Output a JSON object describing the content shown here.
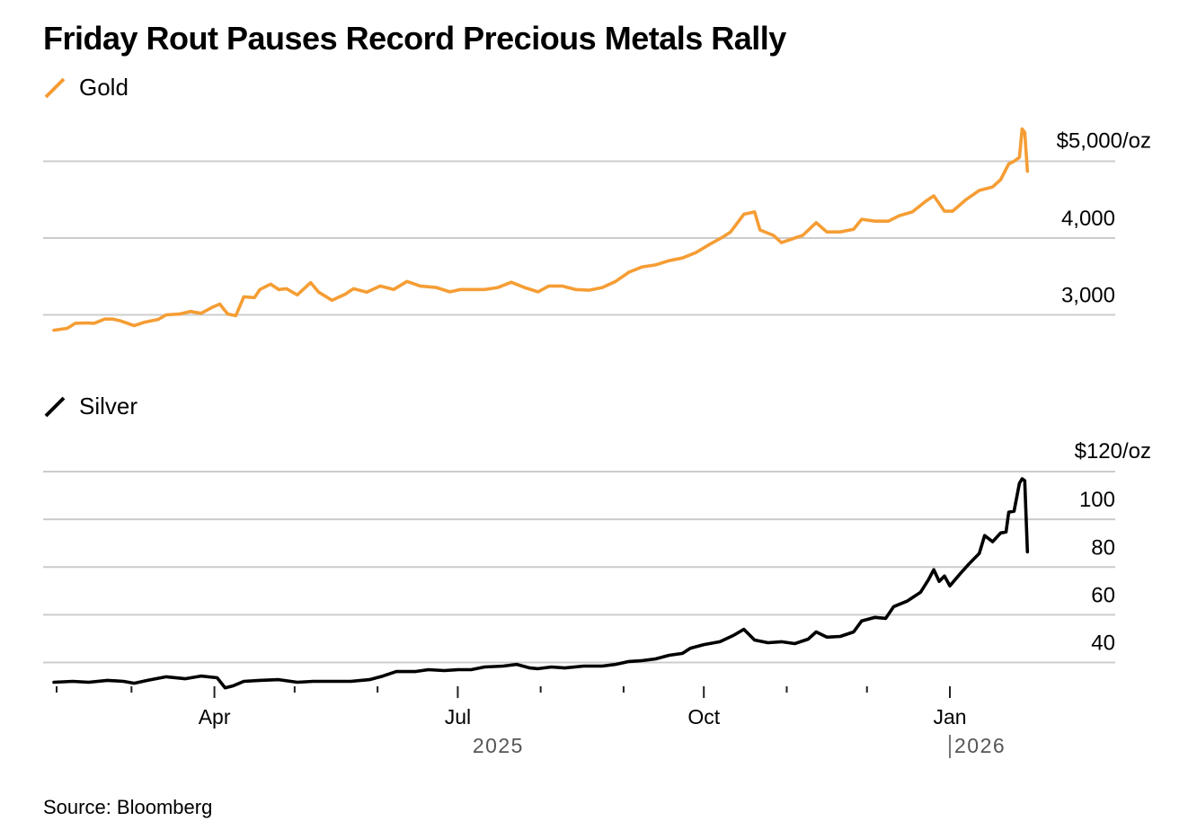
{
  "chart_data": [
    {
      "type": "line",
      "title": "Friday Rout Pauses Record Precious Metals Rally",
      "series_name": "Gold",
      "color": "#f59d34",
      "unit_suffix": "/oz",
      "ylim": [
        2700,
        5500
      ],
      "yticks": [
        3000,
        4000,
        5000
      ],
      "ytick_labels": [
        "3,000",
        "4,000",
        "$5,000/oz"
      ],
      "x_unit": "days since 2025-02-01",
      "points": [
        [
          -1,
          2800
        ],
        [
          4,
          2825
        ],
        [
          7,
          2890
        ],
        [
          11,
          2895
        ],
        [
          14,
          2890
        ],
        [
          18,
          2945
        ],
        [
          21,
          2945
        ],
        [
          24,
          2920
        ],
        [
          29,
          2860
        ],
        [
          33,
          2905
        ],
        [
          38,
          2940
        ],
        [
          41,
          3000
        ],
        [
          46,
          3010
        ],
        [
          50,
          3045
        ],
        [
          54,
          3020
        ],
        [
          58,
          3095
        ],
        [
          61,
          3140
        ],
        [
          64,
          3010
        ],
        [
          67,
          2990
        ],
        [
          70,
          3235
        ],
        [
          74,
          3225
        ],
        [
          76,
          3330
        ],
        [
          80,
          3400
        ],
        [
          83,
          3330
        ],
        [
          86,
          3340
        ],
        [
          90,
          3260
        ],
        [
          95,
          3420
        ],
        [
          98,
          3295
        ],
        [
          103,
          3190
        ],
        [
          108,
          3270
        ],
        [
          111,
          3340
        ],
        [
          116,
          3295
        ],
        [
          121,
          3375
        ],
        [
          126,
          3330
        ],
        [
          131,
          3435
        ],
        [
          136,
          3375
        ],
        [
          142,
          3355
        ],
        [
          147,
          3300
        ],
        [
          151,
          3330
        ],
        [
          155,
          3330
        ],
        [
          160,
          3330
        ],
        [
          165,
          3355
        ],
        [
          170,
          3425
        ],
        [
          175,
          3355
        ],
        [
          180,
          3300
        ],
        [
          184,
          3375
        ],
        [
          189,
          3375
        ],
        [
          194,
          3330
        ],
        [
          199,
          3320
        ],
        [
          204,
          3355
        ],
        [
          209,
          3435
        ],
        [
          214,
          3555
        ],
        [
          219,
          3625
        ],
        [
          224,
          3650
        ],
        [
          229,
          3705
        ],
        [
          234,
          3740
        ],
        [
          239,
          3810
        ],
        [
          244,
          3915
        ],
        [
          249,
          4010
        ],
        [
          252,
          4080
        ],
        [
          257,
          4310
        ],
        [
          261,
          4340
        ],
        [
          263,
          4105
        ],
        [
          268,
          4035
        ],
        [
          271,
          3940
        ],
        [
          276,
          4000
        ],
        [
          279,
          4035
        ],
        [
          284,
          4200
        ],
        [
          288,
          4080
        ],
        [
          293,
          4080
        ],
        [
          298,
          4115
        ],
        [
          301,
          4245
        ],
        [
          306,
          4220
        ],
        [
          311,
          4220
        ],
        [
          315,
          4290
        ],
        [
          320,
          4340
        ],
        [
          325,
          4480
        ],
        [
          328,
          4550
        ],
        [
          332,
          4350
        ],
        [
          335,
          4350
        ],
        [
          340,
          4500
        ],
        [
          345,
          4620
        ],
        [
          350,
          4665
        ],
        [
          353,
          4760
        ],
        [
          356,
          4965
        ],
        [
          358,
          5000
        ],
        [
          360,
          5050
        ],
        [
          361,
          5420
        ],
        [
          362,
          5375
        ],
        [
          363,
          4870
        ]
      ],
      "legend": "Gold"
    },
    {
      "type": "line",
      "series_name": "Silver",
      "color": "#000000",
      "unit_suffix": "/oz",
      "ylim": [
        30,
        120
      ],
      "yticks": [
        40,
        60,
        80,
        100,
        120
      ],
      "ytick_labels": [
        "40",
        "60",
        "80",
        "100",
        "$120/oz"
      ],
      "x_unit": "days since 2025-02-01",
      "points": [
        [
          -1,
          31.7
        ],
        [
          6,
          32.1
        ],
        [
          12,
          31.7
        ],
        [
          19,
          32.5
        ],
        [
          25,
          32.1
        ],
        [
          29,
          31.3
        ],
        [
          34,
          32.5
        ],
        [
          41,
          34.0
        ],
        [
          48,
          33.2
        ],
        [
          54,
          34.3
        ],
        [
          60,
          33.6
        ],
        [
          63,
          29.4
        ],
        [
          66,
          30.2
        ],
        [
          70,
          32.1
        ],
        [
          76,
          32.5
        ],
        [
          83,
          32.8
        ],
        [
          90,
          31.7
        ],
        [
          96,
          32.1
        ],
        [
          103,
          32.1
        ],
        [
          110,
          32.1
        ],
        [
          117,
          32.8
        ],
        [
          122,
          34.3
        ],
        [
          127,
          36.2
        ],
        [
          134,
          36.2
        ],
        [
          139,
          37.0
        ],
        [
          145,
          36.6
        ],
        [
          150,
          37.0
        ],
        [
          155,
          37.0
        ],
        [
          160,
          38.1
        ],
        [
          167,
          38.5
        ],
        [
          172,
          39.2
        ],
        [
          177,
          37.7
        ],
        [
          180,
          37.4
        ],
        [
          185,
          38.1
        ],
        [
          190,
          37.7
        ],
        [
          197,
          38.5
        ],
        [
          204,
          38.5
        ],
        [
          209,
          39.2
        ],
        [
          214,
          40.4
        ],
        [
          219,
          40.8
        ],
        [
          224,
          41.5
        ],
        [
          229,
          43.0
        ],
        [
          234,
          43.8
        ],
        [
          237,
          46.0
        ],
        [
          242,
          47.5
        ],
        [
          248,
          48.7
        ],
        [
          253,
          51.3
        ],
        [
          257,
          53.9
        ],
        [
          261,
          49.4
        ],
        [
          266,
          48.3
        ],
        [
          271,
          48.7
        ],
        [
          276,
          47.9
        ],
        [
          281,
          49.8
        ],
        [
          284,
          52.8
        ],
        [
          288,
          50.6
        ],
        [
          293,
          50.9
        ],
        [
          298,
          52.8
        ],
        [
          301,
          57.4
        ],
        [
          306,
          58.9
        ],
        [
          310,
          58.5
        ],
        [
          313,
          63.4
        ],
        [
          318,
          65.7
        ],
        [
          323,
          69.4
        ],
        [
          326,
          74.7
        ],
        [
          328,
          78.9
        ],
        [
          330,
          74.0
        ],
        [
          332,
          76.2
        ],
        [
          334,
          72.1
        ],
        [
          338,
          77.4
        ],
        [
          341,
          81.1
        ],
        [
          345,
          85.7
        ],
        [
          347,
          93.2
        ],
        [
          350,
          90.6
        ],
        [
          353,
          94.3
        ],
        [
          355,
          94.7
        ],
        [
          356,
          103.0
        ],
        [
          358,
          103.4
        ],
        [
          360,
          115.1
        ],
        [
          361,
          117.0
        ],
        [
          362,
          116.2
        ],
        [
          363,
          86.4
        ]
      ],
      "legend": "Silver"
    }
  ],
  "x_axis": {
    "tick_days": [
      0,
      28,
      59,
      89,
      120,
      150,
      181,
      212,
      242,
      273,
      303,
      334
    ],
    "labels": [
      {
        "day": 59,
        "text": "Apr"
      },
      {
        "day": 150,
        "text": "Jul"
      },
      {
        "day": 242,
        "text": "Oct"
      },
      {
        "day": 334,
        "text": "Jan"
      }
    ],
    "year_labels": [
      {
        "day": 150,
        "text": "2025",
        "divider": false
      },
      {
        "day": 334,
        "text": "2026",
        "divider": true
      }
    ]
  },
  "header": {
    "title": "Friday Rout Pauses Record Precious Metals Rally"
  },
  "legend": {
    "gold": "Gold",
    "silver": "Silver"
  },
  "footer": {
    "source": "Source: Bloomberg"
  }
}
